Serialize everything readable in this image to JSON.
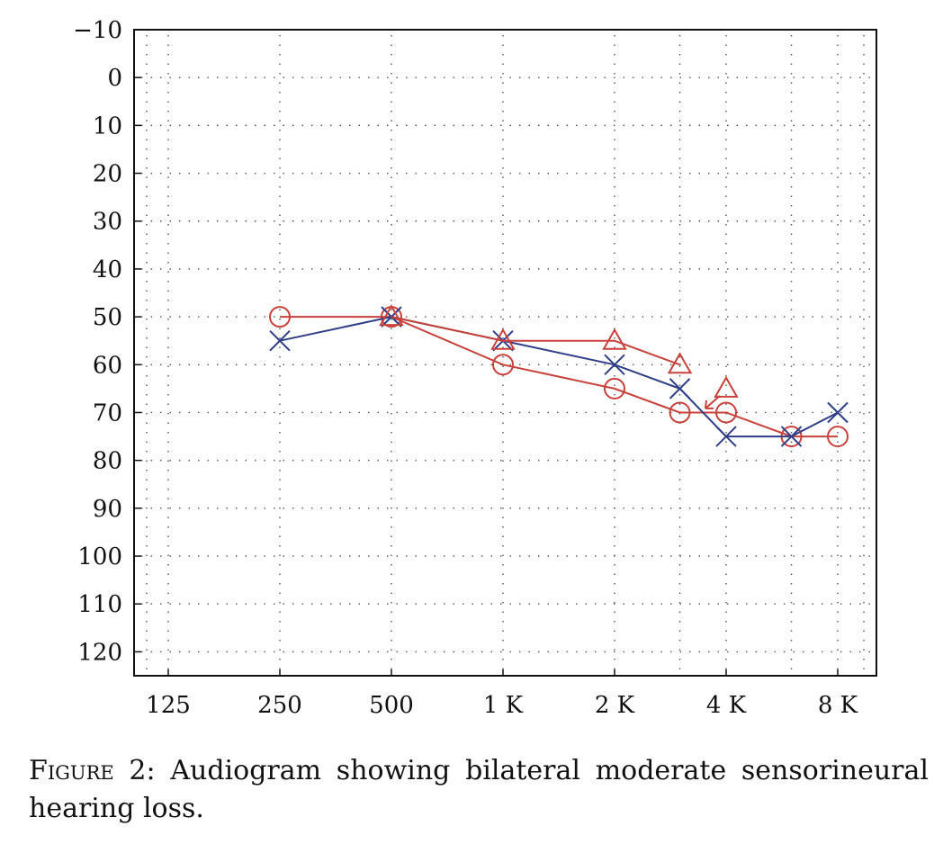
{
  "chart_data": {
    "type": "line",
    "title": "",
    "xlabel": "",
    "ylabel": "",
    "x_categories": [
      "125",
      "250",
      "500",
      "1 K",
      "2 K",
      "4 K",
      "8 K"
    ],
    "y_ticks": [
      -10,
      0,
      10,
      20,
      30,
      40,
      50,
      60,
      70,
      80,
      90,
      100,
      110,
      120
    ],
    "ylim": [
      -10,
      125
    ],
    "y_inverted": true,
    "grid": "dotted",
    "series": [
      {
        "color": "#c8413b",
        "marker": "circle",
        "connected": true,
        "points": [
          {
            "x": "250",
            "y": 50
          },
          {
            "x": "500",
            "y": 50
          },
          {
            "x": "1 K",
            "y": 60
          },
          {
            "x": "2 K",
            "y": 65
          },
          {
            "x": "3 K",
            "y": 70
          },
          {
            "x": "4 K",
            "y": 70
          },
          {
            "x": "6 K",
            "y": 75
          },
          {
            "x": "8 K",
            "y": 75
          }
        ]
      },
      {
        "color": "#2f3f88",
        "marker": "cross",
        "connected": true,
        "points": [
          {
            "x": "250",
            "y": 55
          },
          {
            "x": "500",
            "y": 50
          },
          {
            "x": "1 K",
            "y": 55
          },
          {
            "x": "2 K",
            "y": 60
          },
          {
            "x": "3 K",
            "y": 65
          },
          {
            "x": "4 K",
            "y": 75
          },
          {
            "x": "6 K",
            "y": 75
          },
          {
            "x": "8 K",
            "y": 70
          }
        ]
      },
      {
        "color": "#c8413b",
        "marker": "triangle",
        "connected": true,
        "points": [
          {
            "x": "500",
            "y": 50
          },
          {
            "x": "1 K",
            "y": 55
          },
          {
            "x": "2 K",
            "y": 55
          },
          {
            "x": "3 K",
            "y": 60
          }
        ]
      },
      {
        "color": "#c8413b",
        "marker": "triangle",
        "connected": false,
        "points": [
          {
            "x": "4 K",
            "y": 65
          }
        ]
      }
    ],
    "annotations": [
      {
        "type": "arrow",
        "color": "#c8413b",
        "from": {
          "x": "4 K",
          "y": 65
        },
        "direction": "down-left"
      }
    ]
  },
  "caption": {
    "label": "Figure 2:",
    "text": "Audiogram showing bilateral moderate sensorineural hearing loss."
  }
}
